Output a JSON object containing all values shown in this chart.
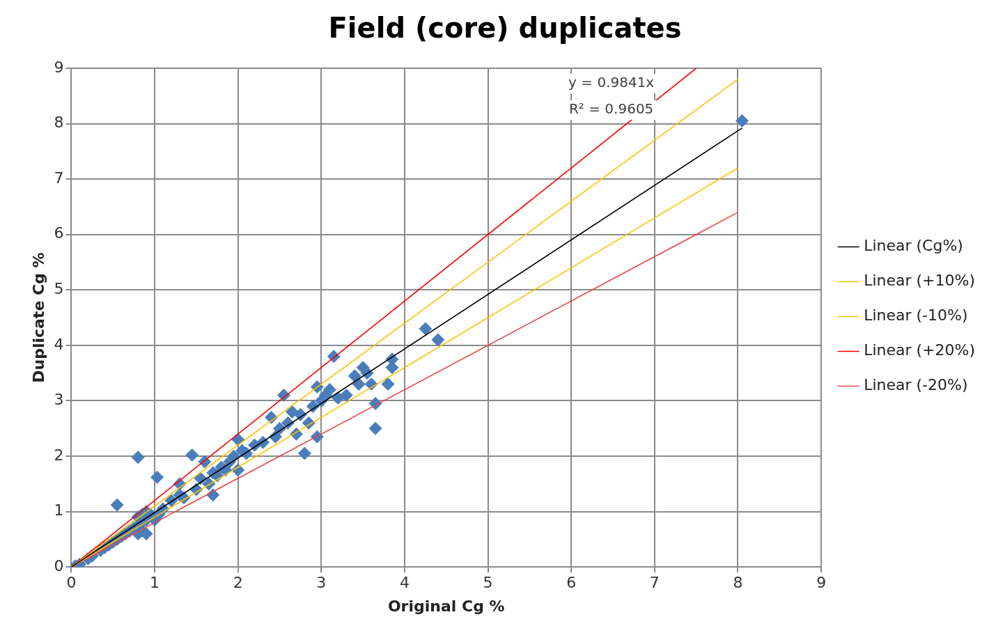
{
  "chart_data": {
    "type": "scatter",
    "title": "Field (core) duplicates",
    "xlabel": "Original Cg %",
    "ylabel": "Duplicate Cg %",
    "xlim": [
      0,
      9
    ],
    "xticks": [
      0,
      1,
      2,
      3,
      4,
      5,
      6,
      7,
      8,
      9
    ],
    "ylim": [
      0,
      9
    ],
    "yticks": [
      0,
      1,
      2,
      3,
      4,
      5,
      6,
      7,
      8,
      9
    ],
    "grid": true,
    "legend": "right",
    "annotations": [
      "y = 0.9841x",
      "R² = 0.9605"
    ],
    "series": [
      {
        "marker": "diamond",
        "color": "#4a7ebb",
        "x": [
          0.05,
          0.1,
          0.2,
          0.25,
          0.35,
          0.4,
          0.45,
          0.5,
          0.55,
          0.6,
          0.65,
          0.7,
          0.75,
          0.8,
          0.85,
          0.9,
          0.8,
          0.85,
          0.9,
          0.95,
          0.8,
          0.9,
          0.85,
          0.55,
          0.8,
          1.03,
          1.0,
          1.05,
          1.1,
          1.2,
          1.3,
          1.3,
          1.35,
          1.45,
          1.5,
          1.55,
          1.6,
          1.65,
          1.7,
          1.7,
          1.75,
          1.8,
          1.85,
          1.9,
          1.95,
          2.0,
          2.0,
          2.05,
          2.1,
          2.2,
          2.3,
          2.4,
          2.45,
          2.5,
          2.55,
          2.6,
          2.65,
          2.7,
          2.75,
          2.8,
          2.85,
          2.9,
          2.95,
          2.95,
          3.0,
          3.05,
          3.1,
          3.15,
          3.2,
          3.3,
          3.4,
          3.45,
          3.5,
          3.55,
          3.6,
          3.65,
          3.65,
          3.8,
          3.85,
          3.85,
          4.25,
          4.4,
          8.05
        ],
        "values": [
          0.02,
          0.05,
          0.15,
          0.2,
          0.3,
          0.35,
          0.4,
          0.45,
          0.5,
          0.55,
          0.6,
          0.65,
          0.7,
          0.75,
          0.8,
          0.85,
          0.9,
          0.95,
          1.0,
          0.95,
          0.6,
          0.6,
          0.65,
          1.12,
          1.98,
          1.62,
          0.85,
          0.95,
          1.05,
          1.2,
          1.5,
          1.3,
          1.25,
          2.02,
          1.4,
          1.6,
          1.9,
          1.5,
          1.3,
          1.7,
          1.65,
          1.8,
          1.75,
          1.9,
          2.0,
          2.3,
          1.75,
          2.1,
          2.05,
          2.2,
          2.25,
          2.7,
          2.35,
          2.5,
          3.1,
          2.6,
          2.8,
          2.4,
          2.75,
          2.05,
          2.6,
          2.9,
          3.25,
          2.35,
          3.0,
          3.1,
          3.2,
          3.8,
          3.05,
          3.1,
          3.45,
          3.3,
          3.6,
          3.5,
          3.3,
          2.5,
          2.95,
          3.3,
          3.6,
          3.75,
          4.3,
          4.1,
          8.05
        ]
      },
      {
        "type": "line",
        "name": "Linear (Cg%)",
        "color": "#000000",
        "x": [
          0,
          8.05
        ],
        "values": [
          0,
          7.92
        ]
      },
      {
        "type": "line",
        "name": "Linear (+10%)",
        "color": "#ffc000",
        "x": [
          0,
          8
        ],
        "values": [
          0,
          8.8
        ]
      },
      {
        "type": "line",
        "name": "Linear (-10%)",
        "color": "#ffc000",
        "x": [
          0,
          8
        ],
        "values": [
          0,
          7.2
        ]
      },
      {
        "type": "line",
        "name": "Linear (+20%)",
        "color": "#ff0000",
        "x": [
          0,
          7.5
        ],
        "values": [
          0,
          9
        ]
      },
      {
        "type": "line",
        "name": "Linear (-20%)",
        "color": "#e8474a",
        "x": [
          0,
          8
        ],
        "values": [
          0,
          6.4
        ]
      }
    ]
  }
}
